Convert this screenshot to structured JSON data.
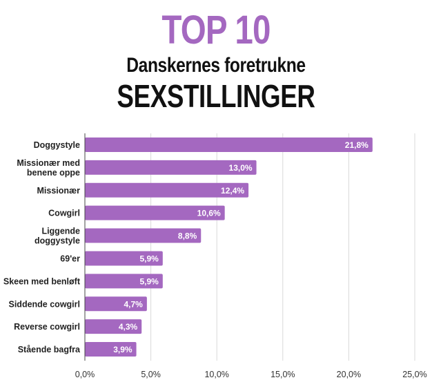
{
  "header": {
    "top": "TOP 10",
    "subtitle": "Danskernes foretrukne",
    "main": "SEXSTILLINGER"
  },
  "chart_data": {
    "type": "bar",
    "orientation": "horizontal",
    "categories": [
      [
        "Doggystyle"
      ],
      [
        "Missionær med",
        "benene oppe"
      ],
      [
        "Missionær"
      ],
      [
        "Cowgirl"
      ],
      [
        "Liggende",
        "doggystyle"
      ],
      [
        "69'er"
      ],
      [
        "Skeen med benløft"
      ],
      [
        "Siddende cowgirl"
      ],
      [
        "Reverse cowgirl"
      ],
      [
        "Stående bagfra"
      ]
    ],
    "values": [
      21.8,
      13.0,
      12.4,
      10.6,
      8.8,
      5.9,
      5.9,
      4.7,
      4.3,
      3.9
    ],
    "value_labels": [
      "21,8%",
      "13,0%",
      "12,4%",
      "10,6%",
      "8,8%",
      "5,9%",
      "5,9%",
      "4,7%",
      "4,3%",
      "3,9%"
    ],
    "x_ticks": [
      0,
      5,
      10,
      15,
      20,
      25
    ],
    "x_tick_labels": [
      "0,0%",
      "5,0%",
      "10,0%",
      "15,0%",
      "20,0%",
      "25,0%"
    ],
    "xlim": [
      0,
      25
    ],
    "grid": true,
    "bar_color": "#a468c0",
    "grid_color": "#d9d9d9",
    "axis_color": "#444444"
  }
}
